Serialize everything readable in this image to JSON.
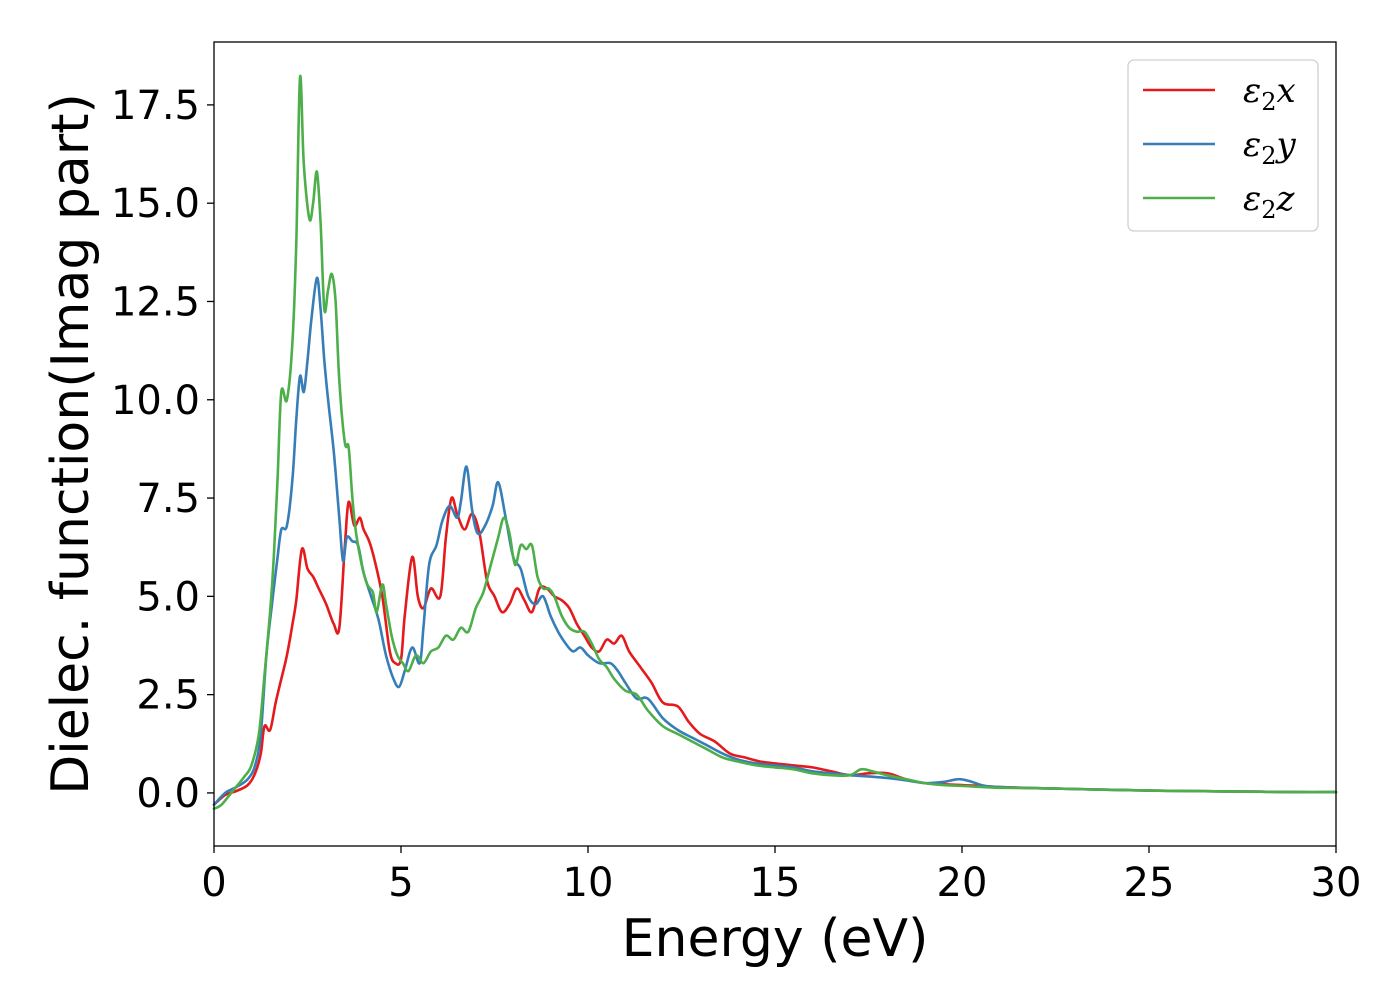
{
  "chart_data": {
    "type": "line",
    "title": "",
    "xlabel": "Energy (eV)",
    "ylabel": "Dielec. function(Imag part)",
    "xlim": [
      0,
      30
    ],
    "ylim": [
      -1.35,
      19.1
    ],
    "xticks": [
      0,
      5,
      10,
      15,
      20,
      25,
      30
    ],
    "xtick_labels": [
      "0",
      "5",
      "10",
      "15",
      "20",
      "25",
      "30"
    ],
    "yticks": [
      0.0,
      2.5,
      5.0,
      7.5,
      10.0,
      12.5,
      15.0,
      17.5
    ],
    "ytick_labels": [
      "0.0",
      "2.5",
      "5.0",
      "7.5",
      "10.0",
      "12.5",
      "15.0",
      "17.5"
    ],
    "grid": false,
    "legend_position": "top-right",
    "legend": [
      {
        "symbol": "ε",
        "sub": "2",
        "var": "x",
        "color": "#e41a1c"
      },
      {
        "symbol": "ε",
        "sub": "2",
        "var": "y",
        "color": "#377eb8"
      },
      {
        "symbol": "ε",
        "sub": "2",
        "var": "z",
        "color": "#4daf4a"
      }
    ],
    "series": [
      {
        "color": "#e41a1c",
        "points": [
          [
            0,
            -0.3
          ],
          [
            0.3,
            -0.05
          ],
          [
            0.6,
            0.05
          ],
          [
            0.9,
            0.2
          ],
          [
            1.1,
            0.5
          ],
          [
            1.25,
            1.0
          ],
          [
            1.35,
            1.7
          ],
          [
            1.5,
            1.6
          ],
          [
            1.65,
            2.3
          ],
          [
            1.8,
            2.9
          ],
          [
            1.95,
            3.5
          ],
          [
            2.1,
            4.3
          ],
          [
            2.2,
            4.9
          ],
          [
            2.35,
            6.2
          ],
          [
            2.5,
            5.7
          ],
          [
            2.65,
            5.5
          ],
          [
            2.8,
            5.2
          ],
          [
            3.0,
            4.8
          ],
          [
            3.2,
            4.3
          ],
          [
            3.35,
            4.2
          ],
          [
            3.5,
            6.3
          ],
          [
            3.6,
            7.4
          ],
          [
            3.75,
            6.8
          ],
          [
            3.9,
            7.0
          ],
          [
            4.0,
            6.7
          ],
          [
            4.15,
            6.4
          ],
          [
            4.3,
            5.9
          ],
          [
            4.5,
            5.0
          ],
          [
            4.7,
            3.6
          ],
          [
            4.85,
            3.3
          ],
          [
            5.0,
            3.4
          ],
          [
            5.1,
            4.5
          ],
          [
            5.3,
            6.0
          ],
          [
            5.45,
            5.0
          ],
          [
            5.6,
            4.7
          ],
          [
            5.8,
            5.2
          ],
          [
            6.05,
            5.0
          ],
          [
            6.2,
            6.5
          ],
          [
            6.35,
            7.5
          ],
          [
            6.5,
            7.1
          ],
          [
            6.7,
            6.7
          ],
          [
            6.9,
            7.1
          ],
          [
            7.1,
            6.6
          ],
          [
            7.3,
            5.4
          ],
          [
            7.5,
            5.0
          ],
          [
            7.7,
            4.6
          ],
          [
            7.9,
            4.8
          ],
          [
            8.1,
            5.2
          ],
          [
            8.3,
            4.9
          ],
          [
            8.5,
            4.6
          ],
          [
            8.7,
            5.2
          ],
          [
            8.9,
            5.2
          ],
          [
            9.1,
            5.0
          ],
          [
            9.3,
            4.9
          ],
          [
            9.5,
            4.7
          ],
          [
            9.7,
            4.3
          ],
          [
            9.9,
            4.0
          ],
          [
            10.1,
            3.7
          ],
          [
            10.3,
            3.6
          ],
          [
            10.5,
            3.9
          ],
          [
            10.7,
            3.8
          ],
          [
            10.9,
            4.0
          ],
          [
            11.1,
            3.6
          ],
          [
            11.4,
            3.2
          ],
          [
            11.7,
            2.8
          ],
          [
            12.0,
            2.3
          ],
          [
            12.4,
            2.2
          ],
          [
            12.7,
            1.8
          ],
          [
            13.0,
            1.5
          ],
          [
            13.4,
            1.3
          ],
          [
            13.8,
            1.0
          ],
          [
            14.2,
            0.9
          ],
          [
            14.6,
            0.8
          ],
          [
            15.0,
            0.75
          ],
          [
            15.5,
            0.7
          ],
          [
            16.0,
            0.65
          ],
          [
            16.5,
            0.55
          ],
          [
            17.0,
            0.45
          ],
          [
            17.5,
            0.5
          ],
          [
            18.0,
            0.5
          ],
          [
            18.5,
            0.35
          ],
          [
            19.0,
            0.25
          ],
          [
            19.5,
            0.22
          ],
          [
            20.0,
            0.2
          ],
          [
            20.5,
            0.18
          ],
          [
            21.0,
            0.15
          ],
          [
            22.0,
            0.12
          ],
          [
            23.0,
            0.1
          ],
          [
            24.0,
            0.08
          ],
          [
            25.0,
            0.06
          ],
          [
            26.0,
            0.05
          ],
          [
            27.0,
            0.04
          ],
          [
            28.0,
            0.03
          ],
          [
            29.0,
            0.02
          ],
          [
            30.0,
            0.02
          ]
        ]
      },
      {
        "color": "#377eb8",
        "points": [
          [
            0,
            -0.3
          ],
          [
            0.3,
            0.0
          ],
          [
            0.6,
            0.15
          ],
          [
            0.9,
            0.35
          ],
          [
            1.1,
            0.7
          ],
          [
            1.25,
            1.5
          ],
          [
            1.4,
            3.5
          ],
          [
            1.55,
            4.8
          ],
          [
            1.7,
            6.0
          ],
          [
            1.8,
            6.7
          ],
          [
            1.95,
            6.8
          ],
          [
            2.1,
            8.0
          ],
          [
            2.2,
            9.5
          ],
          [
            2.3,
            10.6
          ],
          [
            2.4,
            10.2
          ],
          [
            2.5,
            11.0
          ],
          [
            2.6,
            12.0
          ],
          [
            2.75,
            13.1
          ],
          [
            2.85,
            12.3
          ],
          [
            2.95,
            11.0
          ],
          [
            3.05,
            10.0
          ],
          [
            3.2,
            8.7
          ],
          [
            3.35,
            7.0
          ],
          [
            3.45,
            5.9
          ],
          [
            3.55,
            6.5
          ],
          [
            3.7,
            6.4
          ],
          [
            3.85,
            6.3
          ],
          [
            4.0,
            5.6
          ],
          [
            4.2,
            5.0
          ],
          [
            4.4,
            4.4
          ],
          [
            4.6,
            3.5
          ],
          [
            4.8,
            2.9
          ],
          [
            4.95,
            2.7
          ],
          [
            5.1,
            3.1
          ],
          [
            5.3,
            3.7
          ],
          [
            5.5,
            3.3
          ],
          [
            5.6,
            4.2
          ],
          [
            5.75,
            5.8
          ],
          [
            5.95,
            6.3
          ],
          [
            6.1,
            6.9
          ],
          [
            6.3,
            7.3
          ],
          [
            6.5,
            7.0
          ],
          [
            6.6,
            7.4
          ],
          [
            6.75,
            8.3
          ],
          [
            6.9,
            7.2
          ],
          [
            7.05,
            6.6
          ],
          [
            7.25,
            6.8
          ],
          [
            7.45,
            7.3
          ],
          [
            7.6,
            7.9
          ],
          [
            7.8,
            7.0
          ],
          [
            8.0,
            6.0
          ],
          [
            8.2,
            5.7
          ],
          [
            8.4,
            5.0
          ],
          [
            8.6,
            4.8
          ],
          [
            8.8,
            5.0
          ],
          [
            9.0,
            4.5
          ],
          [
            9.2,
            4.1
          ],
          [
            9.4,
            3.8
          ],
          [
            9.6,
            3.6
          ],
          [
            9.8,
            3.7
          ],
          [
            10.0,
            3.5
          ],
          [
            10.3,
            3.3
          ],
          [
            10.6,
            3.3
          ],
          [
            10.8,
            3.1
          ],
          [
            11.0,
            2.8
          ],
          [
            11.3,
            2.4
          ],
          [
            11.6,
            2.4
          ],
          [
            12.0,
            1.9
          ],
          [
            12.4,
            1.6
          ],
          [
            12.8,
            1.4
          ],
          [
            13.2,
            1.2
          ],
          [
            13.6,
            1.0
          ],
          [
            14.0,
            0.85
          ],
          [
            14.5,
            0.75
          ],
          [
            15.0,
            0.7
          ],
          [
            15.5,
            0.65
          ],
          [
            16.0,
            0.55
          ],
          [
            16.5,
            0.5
          ],
          [
            17.0,
            0.45
          ],
          [
            17.5,
            0.42
          ],
          [
            18.0,
            0.38
          ],
          [
            18.5,
            0.32
          ],
          [
            19.0,
            0.25
          ],
          [
            19.5,
            0.28
          ],
          [
            19.9,
            0.35
          ],
          [
            20.2,
            0.3
          ],
          [
            20.6,
            0.18
          ],
          [
            21.0,
            0.15
          ],
          [
            22.0,
            0.12
          ],
          [
            23.0,
            0.1
          ],
          [
            24.0,
            0.08
          ],
          [
            25.0,
            0.06
          ],
          [
            26.0,
            0.05
          ],
          [
            27.0,
            0.04
          ],
          [
            28.0,
            0.03
          ],
          [
            29.0,
            0.02
          ],
          [
            30.0,
            0.02
          ]
        ]
      },
      {
        "color": "#4daf4a",
        "points": [
          [
            0,
            -0.4
          ],
          [
            0.2,
            -0.3
          ],
          [
            0.5,
            0.05
          ],
          [
            0.8,
            0.4
          ],
          [
            1.0,
            0.7
          ],
          [
            1.2,
            1.5
          ],
          [
            1.35,
            3.0
          ],
          [
            1.5,
            4.6
          ],
          [
            1.6,
            6.0
          ],
          [
            1.7,
            8.0
          ],
          [
            1.8,
            10.2
          ],
          [
            1.95,
            10.0
          ],
          [
            2.1,
            11.5
          ],
          [
            2.2,
            14.0
          ],
          [
            2.3,
            18.2
          ],
          [
            2.4,
            16.0
          ],
          [
            2.55,
            14.6
          ],
          [
            2.65,
            15.0
          ],
          [
            2.75,
            15.8
          ],
          [
            2.85,
            14.5
          ],
          [
            2.95,
            12.3
          ],
          [
            3.05,
            12.8
          ],
          [
            3.15,
            13.2
          ],
          [
            3.25,
            12.5
          ],
          [
            3.35,
            10.5
          ],
          [
            3.5,
            8.9
          ],
          [
            3.6,
            8.8
          ],
          [
            3.7,
            7.5
          ],
          [
            3.8,
            6.6
          ],
          [
            3.95,
            5.8
          ],
          [
            4.1,
            5.3
          ],
          [
            4.25,
            5.1
          ],
          [
            4.35,
            4.6
          ],
          [
            4.5,
            5.3
          ],
          [
            4.6,
            4.8
          ],
          [
            4.75,
            4.0
          ],
          [
            4.9,
            3.5
          ],
          [
            5.05,
            3.3
          ],
          [
            5.2,
            3.1
          ],
          [
            5.4,
            3.5
          ],
          [
            5.6,
            3.3
          ],
          [
            5.8,
            3.6
          ],
          [
            6.0,
            3.7
          ],
          [
            6.2,
            4.0
          ],
          [
            6.4,
            3.9
          ],
          [
            6.6,
            4.2
          ],
          [
            6.8,
            4.1
          ],
          [
            7.0,
            4.7
          ],
          [
            7.2,
            5.1
          ],
          [
            7.4,
            5.8
          ],
          [
            7.6,
            6.5
          ],
          [
            7.75,
            7.0
          ],
          [
            7.9,
            6.6
          ],
          [
            8.05,
            5.8
          ],
          [
            8.2,
            6.3
          ],
          [
            8.35,
            6.2
          ],
          [
            8.5,
            6.3
          ],
          [
            8.65,
            5.5
          ],
          [
            8.8,
            5.2
          ],
          [
            8.95,
            5.2
          ],
          [
            9.1,
            5.0
          ],
          [
            9.3,
            4.5
          ],
          [
            9.5,
            4.2
          ],
          [
            9.7,
            4.1
          ],
          [
            9.9,
            4.1
          ],
          [
            10.1,
            3.8
          ],
          [
            10.3,
            3.4
          ],
          [
            10.5,
            3.2
          ],
          [
            10.7,
            2.9
          ],
          [
            11.0,
            2.6
          ],
          [
            11.3,
            2.5
          ],
          [
            11.6,
            2.1
          ],
          [
            12.0,
            1.7
          ],
          [
            12.4,
            1.5
          ],
          [
            12.8,
            1.3
          ],
          [
            13.2,
            1.1
          ],
          [
            13.6,
            0.9
          ],
          [
            14.0,
            0.8
          ],
          [
            14.5,
            0.7
          ],
          [
            15.0,
            0.65
          ],
          [
            15.5,
            0.6
          ],
          [
            16.0,
            0.5
          ],
          [
            16.5,
            0.45
          ],
          [
            17.0,
            0.45
          ],
          [
            17.3,
            0.6
          ],
          [
            17.6,
            0.55
          ],
          [
            18.0,
            0.45
          ],
          [
            18.5,
            0.35
          ],
          [
            19.0,
            0.25
          ],
          [
            19.5,
            0.2
          ],
          [
            20.0,
            0.18
          ],
          [
            20.5,
            0.15
          ],
          [
            21.0,
            0.13
          ],
          [
            22.0,
            0.12
          ],
          [
            23.0,
            0.1
          ],
          [
            24.0,
            0.08
          ],
          [
            25.0,
            0.06
          ],
          [
            26.0,
            0.05
          ],
          [
            27.0,
            0.04
          ],
          [
            28.0,
            0.03
          ],
          [
            29.0,
            0.02
          ],
          [
            30.0,
            0.02
          ]
        ]
      }
    ]
  }
}
